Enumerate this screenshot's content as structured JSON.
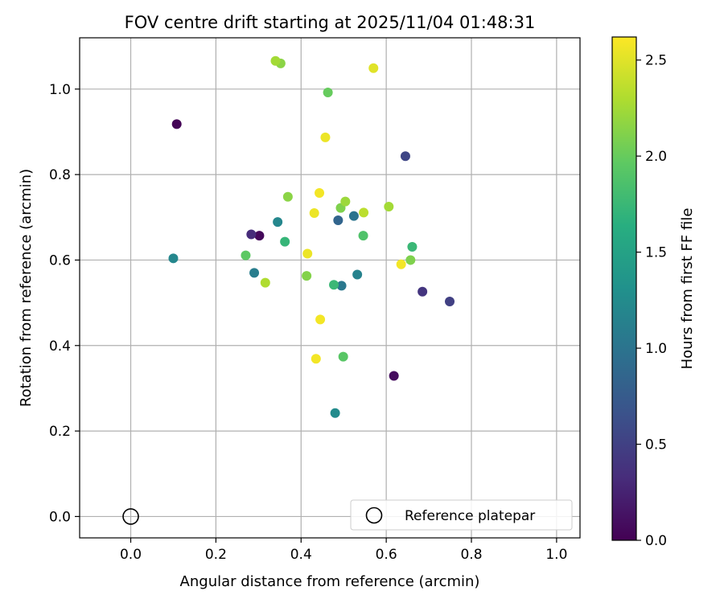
{
  "chart_data": {
    "type": "scatter",
    "title": "FOV centre drift starting at 2025/11/04 01:48:31",
    "xlabel": "Angular distance from reference (arcmin)",
    "ylabel": "Rotation from reference (arcmin)",
    "xlim": [
      -0.12,
      1.055
    ],
    "ylim": [
      -0.05,
      1.12
    ],
    "xticks": [
      0.0,
      0.2,
      0.4,
      0.6,
      0.8,
      1.0
    ],
    "xtick_labels": [
      "0.0",
      "0.2",
      "0.4",
      "0.6",
      "0.8",
      "1.0"
    ],
    "yticks": [
      0.0,
      0.2,
      0.4,
      0.6,
      0.8,
      1.0
    ],
    "ytick_labels": [
      "0.0",
      "0.2",
      "0.4",
      "0.6",
      "0.8",
      "1.0"
    ],
    "grid": true,
    "colorbar": {
      "label": "Hours from first FF file",
      "range": [
        0.0,
        2.62
      ],
      "ticks": [
        0.0,
        0.5,
        1.0,
        1.5,
        2.0,
        2.5
      ],
      "tick_labels": [
        "0.0",
        "0.5",
        "1.0",
        "1.5",
        "2.0",
        "2.5"
      ],
      "colormap": "viridis"
    },
    "legend": {
      "position": "bottom-right",
      "entries": [
        "Reference platepar"
      ]
    },
    "reference_point": {
      "x": 0.0,
      "y": 0.0,
      "label": "Reference platepar"
    },
    "points": [
      {
        "x": 0.108,
        "y": 0.918,
        "c": 0.02
      },
      {
        "x": 0.302,
        "y": 0.657,
        "c": 0.05
      },
      {
        "x": 0.618,
        "y": 0.329,
        "c": 0.08
      },
      {
        "x": 0.283,
        "y": 0.66,
        "c": 0.32
      },
      {
        "x": 0.645,
        "y": 0.843,
        "c": 0.55
      },
      {
        "x": 0.685,
        "y": 0.526,
        "c": 0.4
      },
      {
        "x": 0.749,
        "y": 0.503,
        "c": 0.5
      },
      {
        "x": 0.487,
        "y": 0.693,
        "c": 0.85
      },
      {
        "x": 0.524,
        "y": 0.703,
        "c": 1.0
      },
      {
        "x": 0.345,
        "y": 0.689,
        "c": 1.2
      },
      {
        "x": 0.29,
        "y": 0.57,
        "c": 1.1
      },
      {
        "x": 0.495,
        "y": 0.54,
        "c": 1.05
      },
      {
        "x": 0.532,
        "y": 0.566,
        "c": 1.15
      },
      {
        "x": 0.48,
        "y": 0.242,
        "c": 1.25
      },
      {
        "x": 0.1,
        "y": 0.604,
        "c": 1.2
      },
      {
        "x": 0.362,
        "y": 0.643,
        "c": 1.72
      },
      {
        "x": 0.477,
        "y": 0.542,
        "c": 1.75
      },
      {
        "x": 0.661,
        "y": 0.631,
        "c": 1.75
      },
      {
        "x": 0.546,
        "y": 0.657,
        "c": 1.88
      },
      {
        "x": 0.27,
        "y": 0.611,
        "c": 1.95
      },
      {
        "x": 0.499,
        "y": 0.374,
        "c": 1.93
      },
      {
        "x": 0.463,
        "y": 0.992,
        "c": 2.0
      },
      {
        "x": 0.657,
        "y": 0.6,
        "c": 2.1
      },
      {
        "x": 0.413,
        "y": 0.563,
        "c": 2.12
      },
      {
        "x": 0.369,
        "y": 0.748,
        "c": 2.15
      },
      {
        "x": 0.493,
        "y": 0.722,
        "c": 2.1
      },
      {
        "x": 0.352,
        "y": 1.06,
        "c": 2.15
      },
      {
        "x": 0.34,
        "y": 1.066,
        "c": 2.25
      },
      {
        "x": 0.606,
        "y": 0.725,
        "c": 2.25
      },
      {
        "x": 0.504,
        "y": 0.737,
        "c": 2.22
      },
      {
        "x": 0.316,
        "y": 0.547,
        "c": 2.3
      },
      {
        "x": 0.547,
        "y": 0.711,
        "c": 2.35
      },
      {
        "x": 0.57,
        "y": 1.049,
        "c": 2.5
      },
      {
        "x": 0.457,
        "y": 0.887,
        "c": 2.55
      },
      {
        "x": 0.443,
        "y": 0.757,
        "c": 2.58
      },
      {
        "x": 0.431,
        "y": 0.71,
        "c": 2.55
      },
      {
        "x": 0.415,
        "y": 0.615,
        "c": 2.55
      },
      {
        "x": 0.635,
        "y": 0.59,
        "c": 2.58
      },
      {
        "x": 0.445,
        "y": 0.461,
        "c": 2.58
      },
      {
        "x": 0.435,
        "y": 0.369,
        "c": 2.58
      }
    ]
  }
}
